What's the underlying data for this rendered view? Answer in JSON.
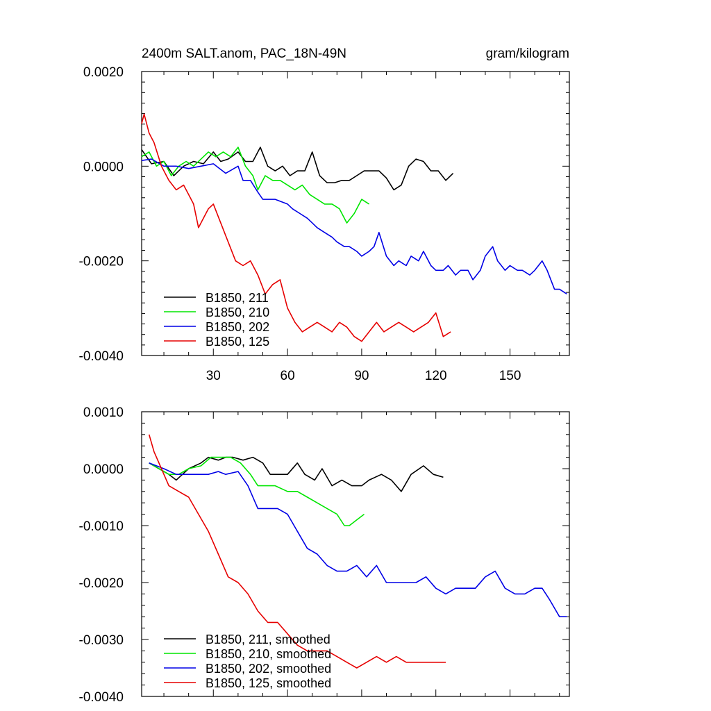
{
  "chart_data": [
    {
      "type": "line",
      "title": "2400m SALT.anom, PAC_18N-49N",
      "units": "gram/kilogram",
      "xlabel": "",
      "ylabel": "",
      "xlim": [
        1,
        174
      ],
      "ylim": [
        -0.004,
        0.002
      ],
      "xticks": [
        30,
        60,
        90,
        120,
        150
      ],
      "xtick_labels": [
        "30",
        "60",
        "90",
        "120",
        "150"
      ],
      "yticks": [
        -0.004,
        -0.002,
        0.0,
        0.002
      ],
      "ytick_labels": [
        "-0.0040",
        "-0.0020",
        "0.0000",
        "0.0020"
      ],
      "grid": false,
      "legend_position": "bottom-left",
      "series": [
        {
          "name": "B1850, 211",
          "color": "#000000",
          "x": [
            1,
            5,
            10,
            14,
            18,
            22,
            26,
            30,
            33,
            36,
            40,
            43,
            46,
            49,
            52,
            55,
            58,
            61,
            64,
            67,
            70,
            73,
            76,
            79,
            82,
            85,
            88,
            91,
            94,
            97,
            100,
            103,
            106,
            109,
            112,
            115,
            118,
            121,
            124,
            127
          ],
          "values": [
            0.00035,
            5e-05,
            0.0001,
            -0.0002,
            0.0,
            0.0001,
            5e-05,
            0.0003,
            0.0001,
            0.00015,
            0.0003,
            0.0001,
            0.0001,
            0.0004,
            0.0,
            -0.0001,
            0.0,
            -0.0002,
            -0.0001,
            -0.0001,
            0.0003,
            -0.0002,
            -0.00035,
            -0.00035,
            -0.0003,
            -0.0003,
            -0.0002,
            -0.0001,
            -0.0001,
            -0.0001,
            -0.00025,
            -0.0005,
            -0.0004,
            0.0,
            0.00015,
            0.0001,
            -0.0001,
            -0.0001,
            -0.0003,
            -0.00015
          ]
        },
        {
          "name": "B1850, 210",
          "color": "#00e600",
          "x": [
            1,
            4,
            7,
            10,
            13,
            16,
            19,
            22,
            25,
            28,
            31,
            34,
            37,
            40,
            43,
            46,
            48,
            51,
            54,
            57,
            60,
            63,
            66,
            69,
            72,
            75,
            78,
            81,
            84,
            87,
            90,
            93
          ],
          "values": [
            0.0002,
            0.0003,
            0.0,
            0.0001,
            -0.0002,
            0.0,
            0.0001,
            0.0,
            0.00015,
            0.0003,
            0.0002,
            0.0003,
            0.0002,
            0.0004,
            0.0,
            -0.0002,
            -0.0005,
            -0.0002,
            -0.0003,
            -0.0003,
            -0.0004,
            -0.0005,
            -0.0004,
            -0.0006,
            -0.0007,
            -0.0008,
            -0.0008,
            -0.0009,
            -0.0012,
            -0.001,
            -0.0007,
            -0.0008
          ]
        },
        {
          "name": "B1850, 202",
          "color": "#0000e6",
          "x": [
            1,
            5,
            10,
            15,
            20,
            25,
            30,
            35,
            40,
            42,
            45,
            48,
            50,
            55,
            60,
            62,
            65,
            68,
            70,
            72,
            75,
            78,
            80,
            83,
            85,
            88,
            90,
            93,
            95,
            97,
            100,
            103,
            105,
            108,
            110,
            113,
            115,
            118,
            120,
            123,
            125,
            128,
            130,
            133,
            135,
            138,
            140,
            143,
            145,
            148,
            150,
            153,
            155,
            158,
            160,
            163,
            165,
            168,
            170,
            173
          ],
          "values": [
            0.00012,
            0.00015,
            0.0,
            0.0,
            -5e-05,
            0.0,
            5e-05,
            -0.00015,
            0.0,
            -0.0003,
            -0.0003,
            -0.00055,
            -0.0007,
            -0.0007,
            -0.0008,
            -0.0009,
            -0.001,
            -0.0011,
            -0.0012,
            -0.0013,
            -0.0014,
            -0.0015,
            -0.0016,
            -0.0017,
            -0.0017,
            -0.0018,
            -0.0019,
            -0.0018,
            -0.0017,
            -0.0014,
            -0.0019,
            -0.0021,
            -0.002,
            -0.0021,
            -0.0019,
            -0.002,
            -0.0018,
            -0.0021,
            -0.0022,
            -0.0022,
            -0.0021,
            -0.0023,
            -0.0022,
            -0.0022,
            -0.0024,
            -0.0022,
            -0.0019,
            -0.0017,
            -0.002,
            -0.0022,
            -0.0021,
            -0.0022,
            -0.0022,
            -0.0023,
            -0.0022,
            -0.002,
            -0.0022,
            -0.0026,
            -0.0026,
            -0.0027
          ]
        },
        {
          "name": "B1850, 125",
          "color": "#e60000",
          "x": [
            1,
            2,
            4,
            6,
            9,
            12,
            15,
            18,
            20,
            22,
            24,
            26,
            28,
            30,
            33,
            36,
            39,
            42,
            45,
            48,
            51,
            54,
            57,
            60,
            63,
            66,
            69,
            72,
            75,
            78,
            81,
            84,
            87,
            90,
            93,
            96,
            99,
            102,
            105,
            108,
            111,
            114,
            117,
            120,
            123,
            126
          ],
          "values": [
            0.0009,
            0.0011,
            0.0007,
            0.0005,
            0.0,
            -0.0003,
            -0.0005,
            -0.0004,
            -0.0006,
            -0.0008,
            -0.0013,
            -0.0011,
            -0.0009,
            -0.0008,
            -0.0012,
            -0.0016,
            -0.002,
            -0.0021,
            -0.002,
            -0.0023,
            -0.0027,
            -0.0025,
            -0.0024,
            -0.003,
            -0.0033,
            -0.0035,
            -0.0034,
            -0.0033,
            -0.0034,
            -0.0035,
            -0.0033,
            -0.0034,
            -0.0036,
            -0.0037,
            -0.0035,
            -0.0033,
            -0.0035,
            -0.0034,
            -0.0033,
            -0.0034,
            -0.0035,
            -0.0034,
            -0.0033,
            -0.0031,
            -0.0036,
            -0.0035
          ]
        }
      ]
    },
    {
      "type": "line",
      "title": "",
      "xlabel": "",
      "ylabel": "",
      "xlim": [
        1,
        174
      ],
      "ylim": [
        -0.004,
        0.001
      ],
      "xticks": [
        30,
        60,
        90,
        120,
        150
      ],
      "xtick_labels": [],
      "yticks": [
        -0.004,
        -0.003,
        -0.002,
        -0.001,
        0.0,
        0.001
      ],
      "ytick_labels": [
        "-0.0040",
        "-0.0030",
        "-0.0020",
        "-0.0010",
        "0.0000",
        "0.0010"
      ],
      "grid": false,
      "legend_position": "bottom-left",
      "series": [
        {
          "name": "B1850, 211, smoothed",
          "color": "#000000",
          "x": [
            4,
            8,
            12,
            15,
            20,
            25,
            28,
            32,
            35,
            38,
            42,
            46,
            50,
            53,
            57,
            60,
            64,
            67,
            71,
            74,
            78,
            82,
            86,
            90,
            93,
            98,
            102,
            106,
            110,
            115,
            119,
            123
          ],
          "values": [
            0.0001,
            0.0,
            -0.0001,
            -0.0002,
            0.0,
            0.0001,
            0.0002,
            0.00015,
            0.0002,
            0.0002,
            0.00015,
            0.0002,
            0.0001,
            -0.0001,
            -0.0001,
            -0.0001,
            0.0001,
            -0.0001,
            -0.0002,
            0.0,
            -0.0003,
            -0.0002,
            -0.0003,
            -0.0003,
            -0.0002,
            -0.0001,
            -0.0002,
            -0.0004,
            -0.0001,
            5e-05,
            -0.0001,
            -0.00015
          ]
        },
        {
          "name": "B1850, 210, smoothed",
          "color": "#00e600",
          "x": [
            4,
            8,
            12,
            16,
            20,
            25,
            29,
            33,
            37,
            41,
            45,
            48,
            51,
            55,
            60,
            64,
            68,
            72,
            76,
            80,
            83,
            85,
            88,
            91
          ],
          "values": [
            0.0001,
            0.0,
            -0.0001,
            -0.0001,
            0.0,
            5e-05,
            0.0002,
            0.0002,
            0.0002,
            0.0001,
            -0.0001,
            -0.0003,
            -0.0003,
            -0.0003,
            -0.0004,
            -0.0004,
            -0.0005,
            -0.0006,
            -0.0007,
            -0.0008,
            -0.001,
            -0.001,
            -0.0009,
            -0.0008
          ]
        },
        {
          "name": "B1850, 202, smoothed",
          "color": "#0000e6",
          "x": [
            4,
            10,
            15,
            20,
            28,
            32,
            35,
            40,
            44,
            48,
            52,
            56,
            60,
            64,
            68,
            72,
            76,
            80,
            84,
            88,
            92,
            96,
            100,
            104,
            108,
            112,
            116,
            120,
            124,
            128,
            132,
            136,
            140,
            144,
            148,
            152,
            156,
            160,
            163,
            166,
            170,
            173
          ],
          "values": [
            0.0001,
            0.0,
            -0.0001,
            -0.0001,
            -0.0001,
            -5e-05,
            -0.0001,
            -5e-05,
            -0.0003,
            -0.0007,
            -0.0007,
            -0.0007,
            -0.0008,
            -0.0011,
            -0.0014,
            -0.0015,
            -0.0017,
            -0.0018,
            -0.0018,
            -0.0017,
            -0.0019,
            -0.0017,
            -0.002,
            -0.002,
            -0.002,
            -0.002,
            -0.0019,
            -0.0021,
            -0.0022,
            -0.0021,
            -0.0021,
            -0.0021,
            -0.0019,
            -0.0018,
            -0.0021,
            -0.0022,
            -0.0022,
            -0.0021,
            -0.0021,
            -0.0023,
            -0.0026,
            -0.0026
          ]
        },
        {
          "name": "B1850, 125, smoothed",
          "color": "#e60000",
          "x": [
            4,
            6,
            9,
            12,
            16,
            20,
            24,
            28,
            32,
            36,
            40,
            44,
            48,
            52,
            56,
            60,
            64,
            68,
            72,
            76,
            80,
            84,
            88,
            92,
            96,
            100,
            104,
            108,
            112,
            116,
            120,
            124
          ],
          "values": [
            0.0006,
            0.0003,
            0.0,
            -0.0003,
            -0.0004,
            -0.0005,
            -0.0008,
            -0.0011,
            -0.0015,
            -0.0019,
            -0.002,
            -0.0022,
            -0.0025,
            -0.0027,
            -0.0027,
            -0.0029,
            -0.0031,
            -0.0032,
            -0.0032,
            -0.0032,
            -0.0033,
            -0.0034,
            -0.0035,
            -0.0034,
            -0.0033,
            -0.0034,
            -0.0033,
            -0.0034,
            -0.0034,
            -0.0034,
            -0.0034,
            -0.0034
          ]
        }
      ]
    }
  ]
}
